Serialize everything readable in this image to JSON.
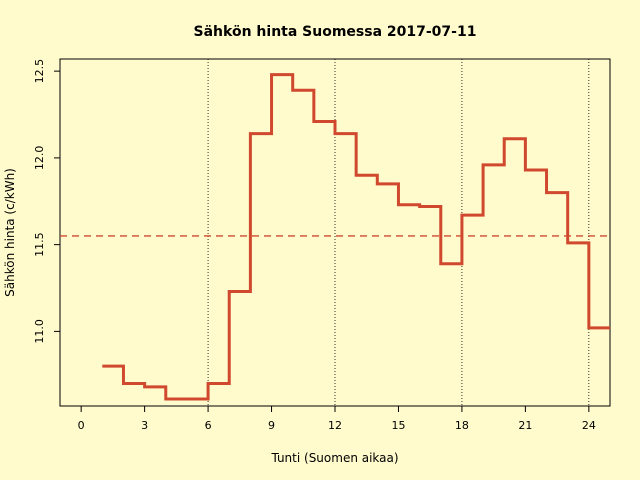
{
  "chart_data": {
    "type": "line",
    "step": true,
    "title": "Sähkön hinta Suomessa 2017-07-11",
    "xlabel": "Tunti (Suomen aikaa)",
    "ylabel": "Sähkön hinta (c/kWh)",
    "xlim": [
      -1,
      25
    ],
    "ylim": [
      10.57,
      12.57
    ],
    "xticks": [
      0,
      3,
      6,
      9,
      12,
      15,
      18,
      21,
      24
    ],
    "yticks": [
      "11.0",
      "11.5",
      "12.0",
      "12.5"
    ],
    "vlines": [
      6,
      12,
      18,
      24
    ],
    "hline": 11.55,
    "line_color": "#d0492e",
    "mean_line_color": "#d0492e",
    "grid": false,
    "series": [
      {
        "x": [
          1,
          2,
          3,
          4,
          5,
          6,
          7,
          8,
          9,
          10,
          11,
          12,
          13,
          14,
          15,
          16,
          17,
          18,
          19,
          20,
          21,
          22,
          23,
          24,
          25
        ],
        "values": [
          10.8,
          10.7,
          10.68,
          10.61,
          10.61,
          10.7,
          11.23,
          12.14,
          12.48,
          12.39,
          12.21,
          12.14,
          11.9,
          11.85,
          11.73,
          11.72,
          11.39,
          11.67,
          11.96,
          12.11,
          11.93,
          11.8,
          11.51,
          11.02,
          11.02
        ]
      }
    ]
  }
}
